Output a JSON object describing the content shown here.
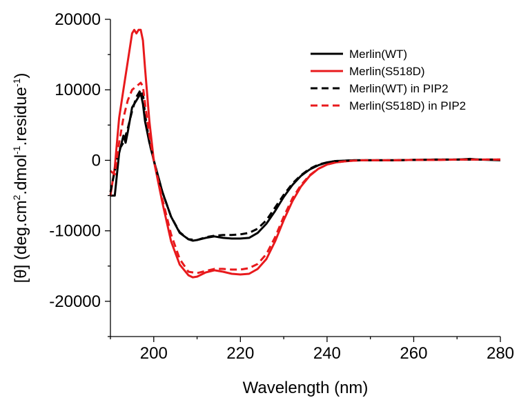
{
  "chart_data": {
    "type": "line",
    "title": "",
    "xlabel": "Wavelength (nm)",
    "ylabel": {
      "prefix": "[θ] (deg.cm",
      "sup1": "2",
      "mid": ".dmol",
      "sup2": "-1",
      "mid2": ".residue",
      "sup3": "-1",
      "suffix": ")"
    },
    "xlim": [
      190,
      280
    ],
    "ylim": [
      -25000,
      20000
    ],
    "xticks": [
      200,
      220,
      240,
      260,
      280
    ],
    "xtick_labels": [
      "200",
      "220",
      "240",
      "260",
      "280"
    ],
    "yticks": [
      20000,
      10000,
      0,
      -10000,
      -20000
    ],
    "ytick_labels": [
      "20000",
      "10000",
      "0",
      "-10000",
      "-20000"
    ],
    "grid": false,
    "legend_position": "top-right",
    "series": [
      {
        "name": "Merlin(WT)",
        "color": "#000000",
        "style": "solid",
        "x": [
          190,
          191,
          192,
          193,
          193.5,
          194,
          195,
          196,
          197,
          197.5,
          198,
          199,
          200,
          202,
          204,
          206,
          208,
          209,
          210,
          212,
          214,
          215,
          216,
          218,
          220,
          222,
          224,
          226,
          228,
          230,
          232,
          234,
          236,
          238,
          240,
          242,
          244,
          246,
          248,
          250,
          255,
          260,
          265,
          270,
          273,
          275,
          280
        ],
        "y": [
          -5000,
          -5000,
          1000,
          3500,
          2500,
          4000,
          7500,
          8500,
          9500,
          8000,
          5500,
          2500,
          0,
          -4500,
          -8000,
          -10300,
          -11200,
          -11400,
          -11300,
          -11000,
          -10800,
          -10900,
          -11000,
          -11100,
          -11100,
          -11000,
          -10300,
          -9000,
          -7200,
          -5200,
          -3500,
          -2200,
          -1300,
          -700,
          -300,
          -100,
          -50,
          0,
          0,
          0,
          0,
          50,
          100,
          100,
          200,
          100,
          0
        ]
      },
      {
        "name": "Merlin(S518D)",
        "color": "#e8191c",
        "style": "solid",
        "x": [
          190,
          191,
          192,
          193,
          194,
          195,
          195.5,
          196,
          196.5,
          197,
          197.5,
          198,
          199,
          200,
          202,
          204,
          206,
          208,
          209,
          210,
          212,
          214,
          216,
          218,
          220,
          222,
          224,
          226,
          228,
          230,
          232,
          234,
          236,
          238,
          240,
          242,
          244,
          246,
          248,
          250,
          255,
          260,
          265,
          270,
          275,
          280
        ],
        "y": [
          -5000,
          -1000,
          6000,
          10000,
          14000,
          18000,
          18500,
          18000,
          18500,
          18500,
          17000,
          13000,
          5500,
          0,
          -6000,
          -11500,
          -14800,
          -16300,
          -16600,
          -16500,
          -15900,
          -15600,
          -15800,
          -16100,
          -16200,
          -16100,
          -15400,
          -14000,
          -11500,
          -8500,
          -5800,
          -3700,
          -2200,
          -1200,
          -600,
          -300,
          -150,
          -50,
          0,
          0,
          0,
          50,
          50,
          100,
          100,
          100
        ]
      },
      {
        "name": "Merlin(WT) in PIP2",
        "color": "#000000",
        "style": "dashed",
        "x": [
          190,
          191,
          192,
          193,
          194,
          195,
          196,
          197,
          197.5,
          198,
          199,
          200,
          202,
          204,
          206,
          208,
          210,
          212,
          214,
          216,
          218,
          220,
          222,
          224,
          226,
          228,
          230,
          232,
          234,
          236,
          238,
          240,
          242,
          244,
          246,
          248,
          250,
          255,
          260,
          265,
          270,
          275,
          280
        ],
        "y": [
          -4500,
          -1500,
          1500,
          2500,
          4500,
          7000,
          9000,
          10000,
          9500,
          6500,
          2500,
          0,
          -4500,
          -8000,
          -10200,
          -11200,
          -11300,
          -10900,
          -10700,
          -10600,
          -10600,
          -10500,
          -10300,
          -9700,
          -8500,
          -6700,
          -4900,
          -3300,
          -2100,
          -1200,
          -600,
          -300,
          -100,
          -50,
          0,
          0,
          0,
          0,
          50,
          100,
          100,
          100,
          100
        ]
      },
      {
        "name": "Merlin(S518D) in PIP2",
        "color": "#e8191c",
        "style": "dashed",
        "x": [
          190,
          191,
          192,
          193,
          194,
          195,
          196,
          197,
          197.5,
          198,
          199,
          200,
          202,
          204,
          206,
          208,
          210,
          212,
          214,
          216,
          218,
          220,
          222,
          224,
          226,
          228,
          230,
          232,
          234,
          236,
          238,
          240,
          242,
          244,
          246,
          248,
          250,
          255,
          260,
          265,
          270,
          275,
          280
        ],
        "y": [
          -1500,
          -2000,
          2500,
          6000,
          8500,
          10000,
          10500,
          11000,
          10500,
          8000,
          3500,
          0,
          -5500,
          -10500,
          -14000,
          -15800,
          -16000,
          -15700,
          -15400,
          -15400,
          -15500,
          -15500,
          -15300,
          -14700,
          -13300,
          -10900,
          -8000,
          -5400,
          -3500,
          -2100,
          -1200,
          -600,
          -300,
          -150,
          -50,
          0,
          0,
          0,
          50,
          50,
          100,
          100,
          100
        ]
      }
    ]
  }
}
